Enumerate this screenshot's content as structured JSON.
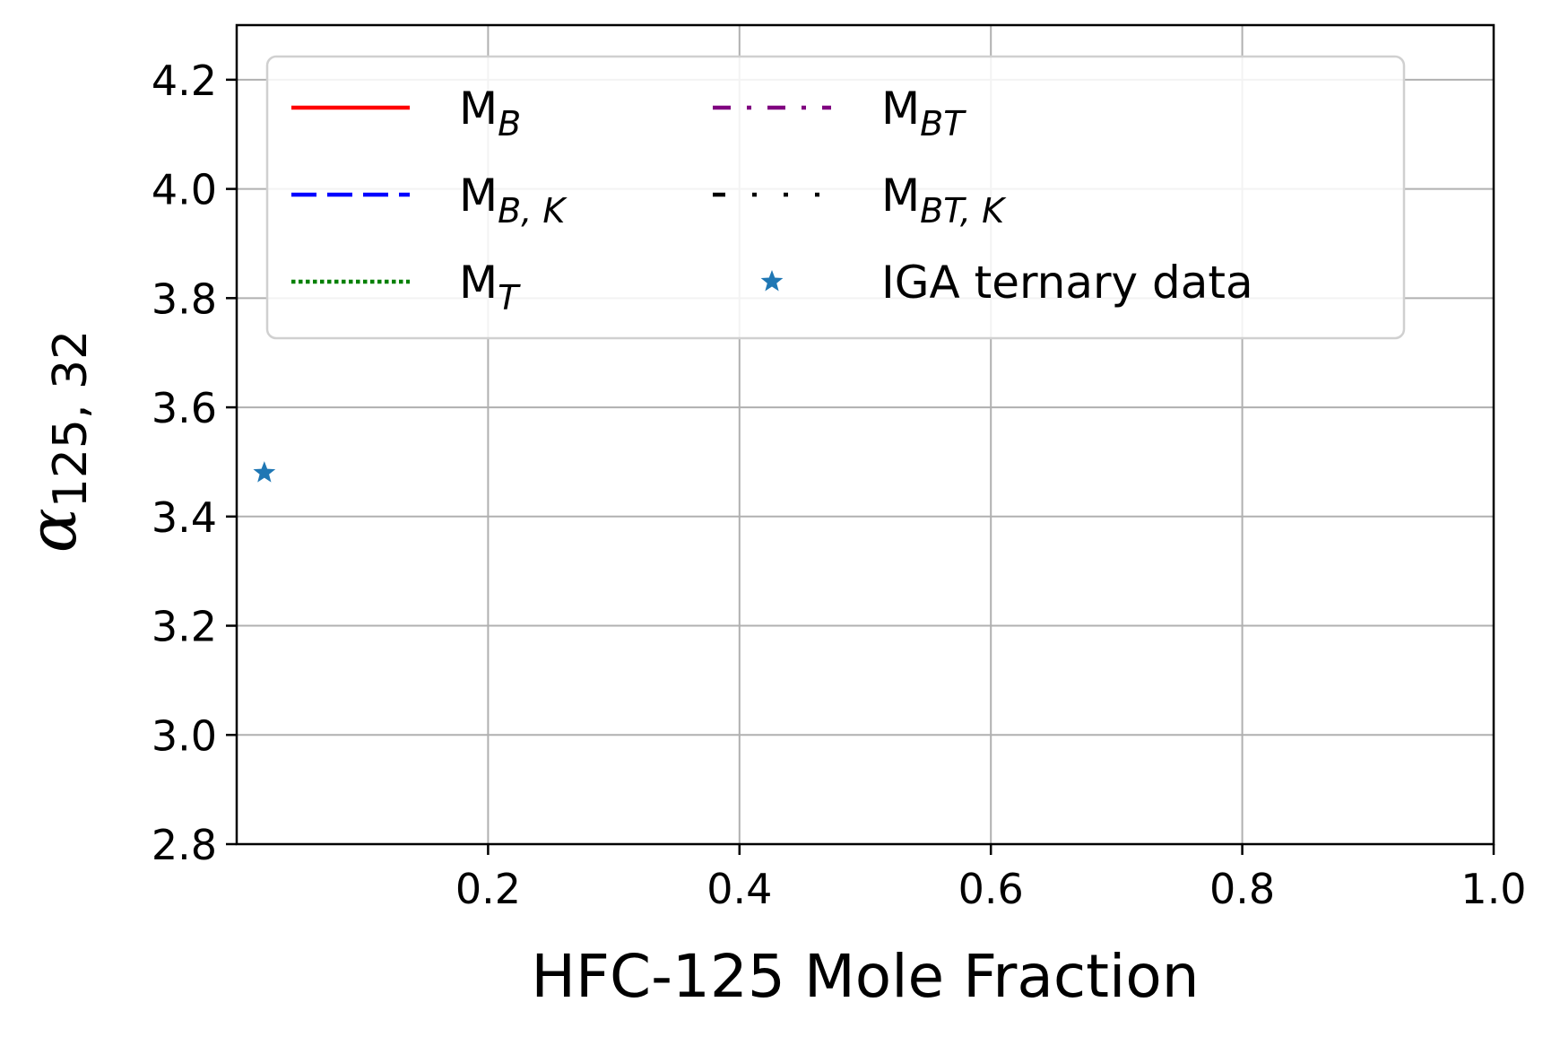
{
  "chart_data": {
    "type": "scatter",
    "xlabel": "HFC-125 Mole Fraction",
    "ylabel": {
      "symbol": "α",
      "subscript": "125, 32"
    },
    "xlim": [
      0.0,
      1.0
    ],
    "ylim": [
      2.8,
      4.3
    ],
    "xticks": [
      0.2,
      0.4,
      0.6,
      0.8,
      1.0
    ],
    "xtick_labels": [
      "0.2",
      "0.4",
      "0.6",
      "0.8",
      "1.0"
    ],
    "yticks": [
      2.8,
      3.0,
      3.2,
      3.4,
      3.6,
      3.8,
      4.0,
      4.2
    ],
    "ytick_labels": [
      "2.8",
      "3.0",
      "3.2",
      "3.4",
      "3.6",
      "3.8",
      "4.0",
      "4.2"
    ],
    "grid": true,
    "legend_placement": "upper-left, two columns",
    "series": [
      {
        "name": "M",
        "sub": "B",
        "style": "solid",
        "color": "#ff0000",
        "x": [],
        "y": []
      },
      {
        "name": "M",
        "sub": "B, K",
        "style": "dashed",
        "color": "#0000ff",
        "x": [],
        "y": []
      },
      {
        "name": "M",
        "sub": "T",
        "style": "dotted",
        "color": "#008000",
        "x": [],
        "y": []
      },
      {
        "name": "M",
        "sub": "BT",
        "style": "dashdot",
        "color": "#800080",
        "x": [],
        "y": []
      },
      {
        "name": "M",
        "sub": "BT, K",
        "style": "dashdot-sparse",
        "color": "#000000",
        "x": [],
        "y": []
      },
      {
        "name": "IGA ternary data",
        "sub": "",
        "style": "marker-star",
        "color": "#1f77b4",
        "x": [
          0.022
        ],
        "y": [
          3.48
        ]
      }
    ]
  }
}
